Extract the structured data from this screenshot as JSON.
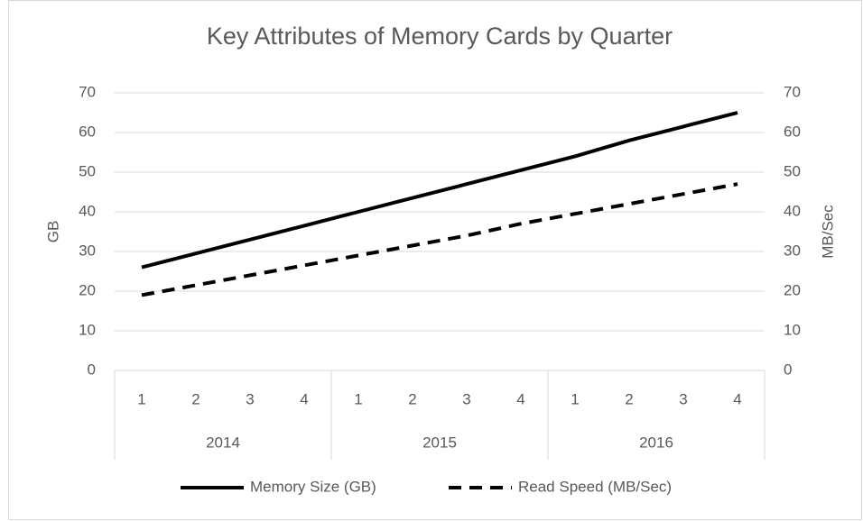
{
  "chart_data": {
    "type": "line",
    "title": "Key Attributes of Memory Cards by Quarter",
    "categories": [
      "1",
      "2",
      "3",
      "4",
      "1",
      "2",
      "3",
      "4",
      "1",
      "2",
      "3",
      "4"
    ],
    "category_groups": [
      "2014",
      "2015",
      "2016"
    ],
    "series": [
      {
        "name": "Memory Size (GB)",
        "color": "#000000",
        "style": "solid",
        "values": [
          26,
          29.5,
          33,
          36.5,
          40,
          43.5,
          47,
          50.5,
          54,
          58,
          61.5,
          65
        ]
      },
      {
        "name": "Read Speed (MB/Sec)",
        "color": "#000000",
        "style": "dashed",
        "axis": "y2",
        "values": [
          19,
          21.5,
          24,
          26.5,
          29,
          31.5,
          34,
          37,
          39.5,
          42,
          44.5,
          47
        ]
      }
    ],
    "ylabel": "GB",
    "y2label": "MB/Sec",
    "ylim": [
      0,
      70
    ],
    "yticks": [
      0,
      10,
      20,
      30,
      40,
      50,
      60,
      70
    ],
    "y2lim": [
      0,
      70
    ],
    "y2ticks": [
      0,
      10,
      20,
      30,
      40,
      50,
      60,
      70
    ],
    "grid": true,
    "legend": "bottom"
  }
}
